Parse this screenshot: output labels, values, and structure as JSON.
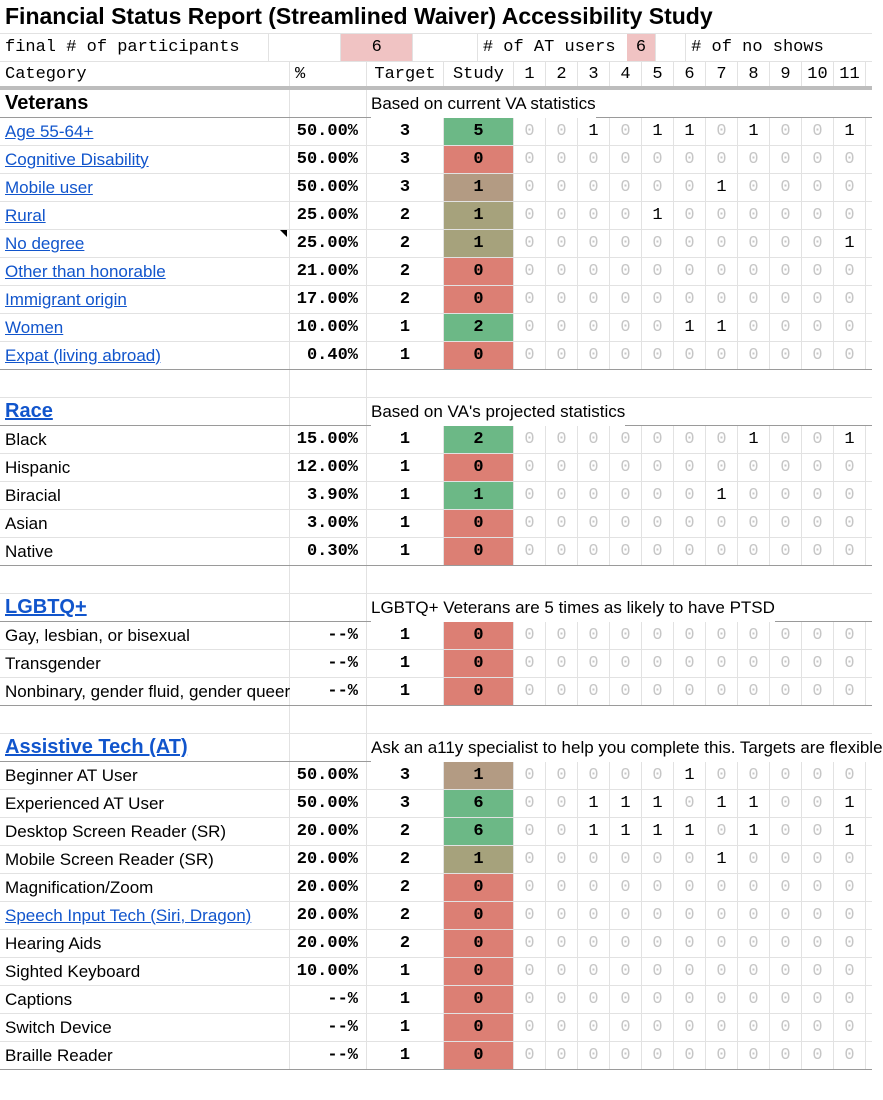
{
  "title": "Financial Status Report (Streamlined Waiver) Accessibility Study",
  "header1": {
    "participants_label": "final # of participants",
    "participants_value": "6",
    "at_users_label": "# of AT users",
    "at_users_value": "6",
    "no_show_label": "# of no shows"
  },
  "header2": {
    "category": "Category",
    "percent": "%",
    "target": "Target",
    "study": "Study",
    "sessions": [
      "1",
      "2",
      "3",
      "4",
      "5",
      "6",
      "7",
      "8",
      "9",
      "10",
      "11"
    ]
  },
  "colors": {
    "green": "#6cb886",
    "red": "#dc7f74",
    "tan": "#b39b83",
    "olive": "#a6a27c",
    "pink": "#f0c3c3"
  },
  "sections": [
    {
      "title": "Veterans",
      "title_link": false,
      "note": "Based on current VA statistics",
      "rows": [
        {
          "label": "Age 55-64+",
          "link": true,
          "pct": "50.00%",
          "target": "3",
          "study": "5",
          "status": "green",
          "cells": [
            "0",
            "0",
            "1",
            "0",
            "1",
            "1",
            "0",
            "1",
            "0",
            "0",
            "1"
          ]
        },
        {
          "label": "Cognitive Disability",
          "link": true,
          "pct": "50.00%",
          "target": "3",
          "study": "0",
          "status": "red",
          "cells": [
            "0",
            "0",
            "0",
            "0",
            "0",
            "0",
            "0",
            "0",
            "0",
            "0",
            "0"
          ]
        },
        {
          "label": "Mobile user",
          "link": true,
          "pct": "50.00%",
          "target": "3",
          "study": "1",
          "status": "tan",
          "cells": [
            "0",
            "0",
            "0",
            "0",
            "0",
            "0",
            "1",
            "0",
            "0",
            "0",
            "0"
          ]
        },
        {
          "label": "Rural",
          "link": true,
          "pct": "25.00%",
          "target": "2",
          "study": "1",
          "status": "olive",
          "cells": [
            "0",
            "0",
            "0",
            "0",
            "1",
            "0",
            "0",
            "0",
            "0",
            "0",
            "0"
          ]
        },
        {
          "label": "No degree",
          "link": true,
          "note_mark": true,
          "pct": "25.00%",
          "target": "2",
          "study": "1",
          "status": "olive",
          "cells": [
            "0",
            "0",
            "0",
            "0",
            "0",
            "0",
            "0",
            "0",
            "0",
            "0",
            "1"
          ]
        },
        {
          "label": "Other than honorable",
          "link": true,
          "pct": "21.00%",
          "target": "2",
          "study": "0",
          "status": "red",
          "cells": [
            "0",
            "0",
            "0",
            "0",
            "0",
            "0",
            "0",
            "0",
            "0",
            "0",
            "0"
          ]
        },
        {
          "label": "Immigrant origin",
          "link": true,
          "pct": "17.00%",
          "target": "2",
          "study": "0",
          "status": "red",
          "cells": [
            "0",
            "0",
            "0",
            "0",
            "0",
            "0",
            "0",
            "0",
            "0",
            "0",
            "0"
          ]
        },
        {
          "label": "Women",
          "link": true,
          "pct": "10.00%",
          "target": "1",
          "study": "2",
          "status": "green",
          "cells": [
            "0",
            "0",
            "0",
            "0",
            "0",
            "1",
            "1",
            "0",
            "0",
            "0",
            "0"
          ]
        },
        {
          "label": "Expat (living abroad)",
          "link": true,
          "pct": "0.40%",
          "target": "1",
          "study": "0",
          "status": "red",
          "cells": [
            "0",
            "0",
            "0",
            "0",
            "0",
            "0",
            "0",
            "0",
            "0",
            "0",
            "0"
          ]
        }
      ]
    },
    {
      "title": "Race",
      "title_link": true,
      "note": "Based on VA's projected statistics",
      "rows": [
        {
          "label": "Black",
          "link": false,
          "pct": "15.00%",
          "target": "1",
          "study": "2",
          "status": "green",
          "cells": [
            "0",
            "0",
            "0",
            "0",
            "0",
            "0",
            "0",
            "1",
            "0",
            "0",
            "1"
          ]
        },
        {
          "label": "Hispanic",
          "link": false,
          "pct": "12.00%",
          "target": "1",
          "study": "0",
          "status": "red",
          "cells": [
            "0",
            "0",
            "0",
            "0",
            "0",
            "0",
            "0",
            "0",
            "0",
            "0",
            "0"
          ]
        },
        {
          "label": "Biracial",
          "link": false,
          "pct": "3.90%",
          "target": "1",
          "study": "1",
          "status": "green",
          "cells": [
            "0",
            "0",
            "0",
            "0",
            "0",
            "0",
            "1",
            "0",
            "0",
            "0",
            "0"
          ]
        },
        {
          "label": "Asian",
          "link": false,
          "pct": "3.00%",
          "target": "1",
          "study": "0",
          "status": "red",
          "cells": [
            "0",
            "0",
            "0",
            "0",
            "0",
            "0",
            "0",
            "0",
            "0",
            "0",
            "0"
          ]
        },
        {
          "label": "Native",
          "link": false,
          "pct": "0.30%",
          "target": "1",
          "study": "0",
          "status": "red",
          "cells": [
            "0",
            "0",
            "0",
            "0",
            "0",
            "0",
            "0",
            "0",
            "0",
            "0",
            "0"
          ]
        }
      ]
    },
    {
      "title": "LGBTQ+",
      "title_link": true,
      "note": "LGBTQ+ Veterans are 5 times as likely to have PTSD",
      "rows": [
        {
          "label": "Gay, lesbian, or bisexual",
          "link": false,
          "pct": "--%",
          "target": "1",
          "study": "0",
          "status": "red",
          "cells": [
            "0",
            "0",
            "0",
            "0",
            "0",
            "0",
            "0",
            "0",
            "0",
            "0",
            "0"
          ]
        },
        {
          "label": "Transgender",
          "link": false,
          "pct": "--%",
          "target": "1",
          "study": "0",
          "status": "red",
          "cells": [
            "0",
            "0",
            "0",
            "0",
            "0",
            "0",
            "0",
            "0",
            "0",
            "0",
            "0"
          ]
        },
        {
          "label": "Nonbinary, gender fluid, gender queer",
          "link": false,
          "pct": "--%",
          "target": "1",
          "study": "0",
          "status": "red",
          "cells": [
            "0",
            "0",
            "0",
            "0",
            "0",
            "0",
            "0",
            "0",
            "0",
            "0",
            "0"
          ]
        }
      ]
    },
    {
      "title": "Assistive Tech (AT)",
      "title_link": true,
      "note": "Ask an a11y specialist to help you complete this. Targets are flexible",
      "rows": [
        {
          "label": "Beginner AT User",
          "link": false,
          "pct": "50.00%",
          "target": "3",
          "study": "1",
          "status": "tan",
          "cells": [
            "0",
            "0",
            "0",
            "0",
            "0",
            "1",
            "0",
            "0",
            "0",
            "0",
            "0"
          ]
        },
        {
          "label": "Experienced AT User",
          "link": false,
          "pct": "50.00%",
          "target": "3",
          "study": "6",
          "status": "green",
          "cells": [
            "0",
            "0",
            "1",
            "1",
            "1",
            "0",
            "1",
            "1",
            "0",
            "0",
            "1"
          ]
        },
        {
          "label": "Desktop Screen Reader (SR)",
          "link": false,
          "pct": "20.00%",
          "target": "2",
          "study": "6",
          "status": "green",
          "cells": [
            "0",
            "0",
            "1",
            "1",
            "1",
            "1",
            "0",
            "1",
            "0",
            "0",
            "1"
          ]
        },
        {
          "label": "Mobile Screen Reader (SR)",
          "link": false,
          "pct": "20.00%",
          "target": "2",
          "study": "1",
          "status": "olive",
          "cells": [
            "0",
            "0",
            "0",
            "0",
            "0",
            "0",
            "1",
            "0",
            "0",
            "0",
            "0"
          ]
        },
        {
          "label": "Magnification/Zoom",
          "link": false,
          "pct": "20.00%",
          "target": "2",
          "study": "0",
          "status": "red",
          "cells": [
            "0",
            "0",
            "0",
            "0",
            "0",
            "0",
            "0",
            "0",
            "0",
            "0",
            "0"
          ]
        },
        {
          "label": "Speech Input Tech (Siri, Dragon)",
          "link": true,
          "pct": "20.00%",
          "target": "2",
          "study": "0",
          "status": "red",
          "cells": [
            "0",
            "0",
            "0",
            "0",
            "0",
            "0",
            "0",
            "0",
            "0",
            "0",
            "0"
          ]
        },
        {
          "label": "Hearing Aids",
          "link": false,
          "pct": "20.00%",
          "target": "2",
          "study": "0",
          "status": "red",
          "cells": [
            "0",
            "0",
            "0",
            "0",
            "0",
            "0",
            "0",
            "0",
            "0",
            "0",
            "0"
          ]
        },
        {
          "label": "Sighted Keyboard",
          "link": false,
          "pct": "10.00%",
          "target": "1",
          "study": "0",
          "status": "red",
          "cells": [
            "0",
            "0",
            "0",
            "0",
            "0",
            "0",
            "0",
            "0",
            "0",
            "0",
            "0"
          ]
        },
        {
          "label": "Captions",
          "link": false,
          "pct": "--%",
          "target": "1",
          "study": "0",
          "status": "red",
          "cells": [
            "0",
            "0",
            "0",
            "0",
            "0",
            "0",
            "0",
            "0",
            "0",
            "0",
            "0"
          ]
        },
        {
          "label": "Switch Device",
          "link": false,
          "pct": "--%",
          "target": "1",
          "study": "0",
          "status": "red",
          "cells": [
            "0",
            "0",
            "0",
            "0",
            "0",
            "0",
            "0",
            "0",
            "0",
            "0",
            "0"
          ]
        },
        {
          "label": "Braille Reader",
          "link": false,
          "pct": "--%",
          "target": "1",
          "study": "0",
          "status": "red",
          "cells": [
            "0",
            "0",
            "0",
            "0",
            "0",
            "0",
            "0",
            "0",
            "0",
            "0",
            "0"
          ]
        }
      ]
    }
  ]
}
